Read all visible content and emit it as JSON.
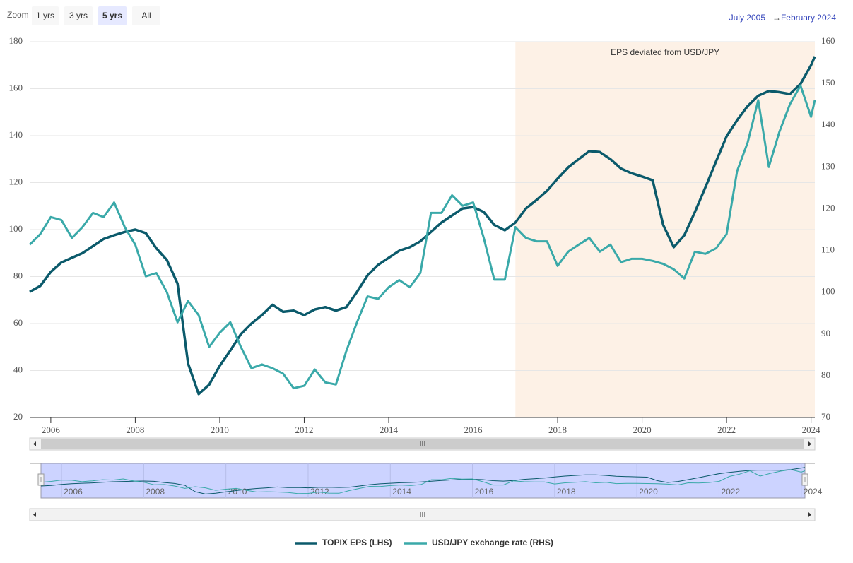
{
  "chart_data": {
    "type": "line",
    "zoom_label": "Zoom",
    "zoom_buttons": [
      "1 yrs",
      "3 yrs",
      "5 yrs",
      "All"
    ],
    "zoom_selected": 2,
    "range": {
      "from": "July 2005",
      "separator": "→",
      "to": "February 2024"
    },
    "annotation": {
      "text": "EPS deviated from USD/JPY",
      "x_from": 2017,
      "color": "#fdf1e6"
    },
    "x": [
      2005.5,
      2005.75,
      2006,
      2006.25,
      2006.5,
      2006.75,
      2007,
      2007.25,
      2007.5,
      2007.75,
      2008,
      2008.25,
      2008.5,
      2008.75,
      2009,
      2009.25,
      2009.5,
      2009.75,
      2010,
      2010.25,
      2010.5,
      2010.75,
      2011,
      2011.25,
      2011.5,
      2011.75,
      2012,
      2012.25,
      2012.5,
      2012.75,
      2013,
      2013.25,
      2013.5,
      2013.75,
      2014,
      2014.25,
      2014.5,
      2014.75,
      2015,
      2015.25,
      2015.5,
      2015.75,
      2016,
      2016.25,
      2016.5,
      2016.75,
      2017,
      2017.25,
      2017.5,
      2017.75,
      2018,
      2018.25,
      2018.5,
      2018.75,
      2019,
      2019.25,
      2019.5,
      2019.75,
      2020,
      2020.25,
      2020.5,
      2020.75,
      2021,
      2021.25,
      2021.5,
      2021.75,
      2022,
      2022.25,
      2022.5,
      2022.75,
      2023,
      2023.25,
      2023.5,
      2023.75,
      2024,
      2024.09
    ],
    "xlim": [
      2005.5,
      2024.09
    ],
    "xticks": [
      2006,
      2008,
      2010,
      2012,
      2014,
      2016,
      2018,
      2020,
      2022,
      2024
    ],
    "ylim": [
      20,
      180
    ],
    "yticks": [
      20,
      40,
      60,
      80,
      100,
      120,
      140,
      160,
      180
    ],
    "y2lim": [
      70,
      160
    ],
    "y2ticks": [
      70,
      80,
      90,
      100,
      110,
      120,
      130,
      140,
      150,
      160
    ],
    "grid": true,
    "series": [
      {
        "name": "TOPIX EPS (LHS)",
        "color": "#0b5a6b",
        "values": [
          73.5,
          76,
          82,
          86,
          88,
          90,
          93,
          96,
          97.6,
          99,
          100,
          98.5,
          92,
          87,
          77,
          43,
          30,
          34,
          42,
          48.5,
          55.5,
          60,
          63.6,
          68,
          65,
          65.5,
          63.6,
          66,
          67,
          65.5,
          67,
          73.5,
          80.5,
          85,
          88,
          91,
          92.5,
          95,
          99,
          103,
          106,
          109,
          109.6,
          107.5,
          102,
          99.7,
          103,
          109,
          112.6,
          116.5,
          121.7,
          126.5,
          130,
          133.4,
          133,
          130,
          126,
          124,
          122.6,
          121,
          102,
          92.5,
          97.6,
          107.5,
          118,
          129,
          139.7,
          146.6,
          152.6,
          157,
          159,
          158.5,
          157.7,
          162,
          170,
          173.7
        ]
      },
      {
        "name": "USD/JPY exchange rate (RHS)",
        "color": "#3aa9a9",
        "axis": "y2",
        "values": [
          111.4,
          113.9,
          118,
          117.3,
          113,
          115.6,
          119,
          118,
          121.5,
          115.6,
          111.4,
          103.8,
          104.6,
          100,
          92.8,
          97.9,
          94.5,
          86.9,
          90.3,
          92.8,
          86.9,
          81.8,
          82.7,
          81.8,
          80.5,
          77,
          77.6,
          81.5,
          78.4,
          77.9,
          86,
          92.8,
          99,
          98.4,
          101.2,
          102.9,
          101.2,
          104.6,
          119,
          119,
          123.2,
          120.7,
          121.5,
          113,
          103,
          103,
          115.6,
          113,
          112.2,
          112.2,
          106.3,
          109.7,
          111.4,
          113,
          109.7,
          111.4,
          107.2,
          108,
          108,
          107.5,
          106.8,
          105.5,
          103.3,
          109.7,
          109.2,
          110.5,
          113.9,
          129,
          135.9,
          146,
          130,
          138.4,
          145,
          149.5,
          142,
          146
        ]
      }
    ]
  }
}
